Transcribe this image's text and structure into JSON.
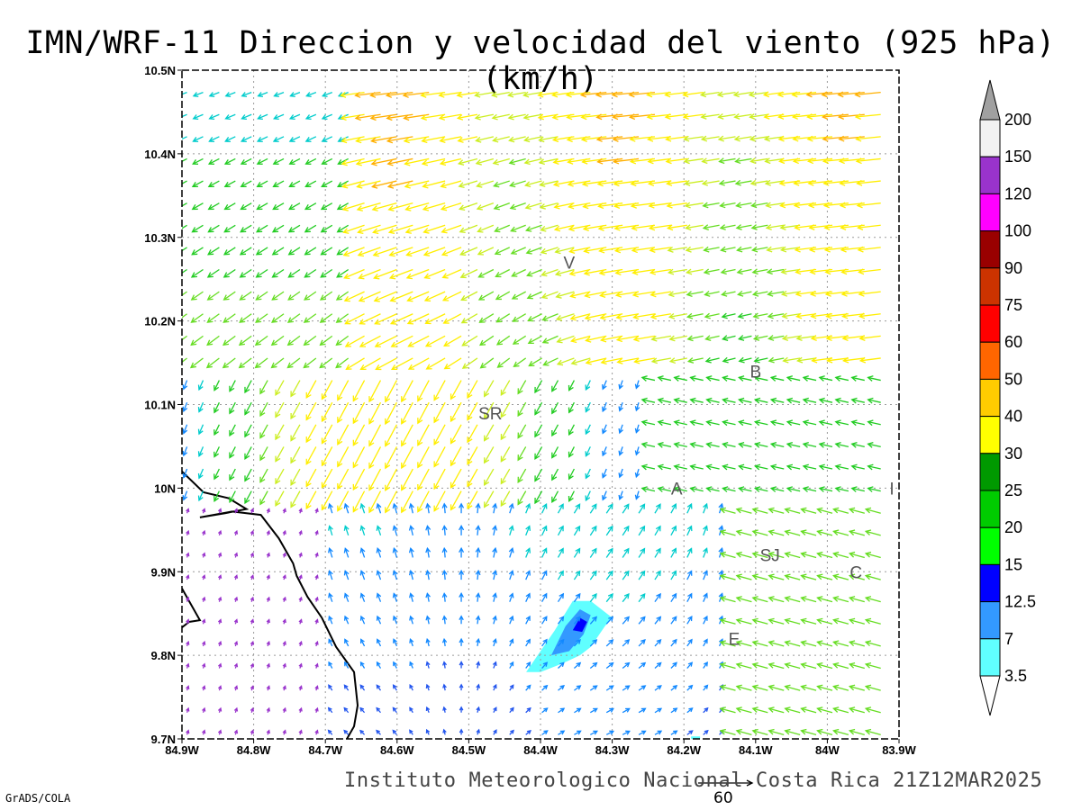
{
  "title": "IMN/WRF-11 Direccion y velocidad del viento (925 hPa)(km/h)",
  "credit": "Instituto Meteorologico Nacional Costa Rica 21Z12MAR2025",
  "software": "GrADS/COLA",
  "reference_vector": {
    "label": "60",
    "value": 60
  },
  "chart_data": {
    "type": "wind-vector-map",
    "title": "IMN/WRF-11 Direccion y velocidad del viento (925 hPa)(km/h)",
    "units": "km/h",
    "level": "925 hPa",
    "valid_time": "21Z12MAR2025",
    "xlim": [
      -84.9,
      -83.9
    ],
    "ylim": [
      9.7,
      10.5
    ],
    "x_ticks": [
      "84.9W",
      "84.8W",
      "84.7W",
      "84.6W",
      "84.5W",
      "84.4W",
      "84.3W",
      "84.2W",
      "84.1W",
      "84W",
      "83.9W"
    ],
    "y_ticks": [
      "9.7N",
      "9.8N",
      "9.9N",
      "10N",
      "10.1N",
      "10.2N",
      "10.3N",
      "10.4N",
      "10.5N"
    ],
    "grid": true,
    "colorbar": {
      "labels": [
        "3.5",
        "7",
        "12.5",
        "15",
        "20",
        "25",
        "30",
        "40",
        "50",
        "60",
        "75",
        "90",
        "100",
        "120",
        "150",
        "200"
      ],
      "colors": [
        "#60ffff",
        "#3399ff",
        "#0000ff",
        "#00ff00",
        "#00cc00",
        "#009900",
        "#ffff00",
        "#ffcc00",
        "#ff6600",
        "#ff0000",
        "#cc3300",
        "#990000",
        "#ff00ff",
        "#9933cc",
        "#f2f2f2",
        "#a0a0a0"
      ]
    },
    "stations": [
      {
        "label": "V",
        "lon": -84.36,
        "lat": 10.27
      },
      {
        "label": "SR",
        "lon": -84.47,
        "lat": 10.09
      },
      {
        "label": "B",
        "lon": -84.1,
        "lat": 10.14
      },
      {
        "label": "A",
        "lon": -84.21,
        "lat": 10.0
      },
      {
        "label": "I",
        "lon": -83.91,
        "lat": 10.0
      },
      {
        "label": "SJ",
        "lon": -84.08,
        "lat": 9.92
      },
      {
        "label": "C",
        "lon": -83.96,
        "lat": 9.9
      },
      {
        "label": "E",
        "lon": -84.13,
        "lat": 9.82
      }
    ],
    "annotation": "Wind field shown as colored arrows (direction and speed); shaded contours show speed (km/h)."
  }
}
